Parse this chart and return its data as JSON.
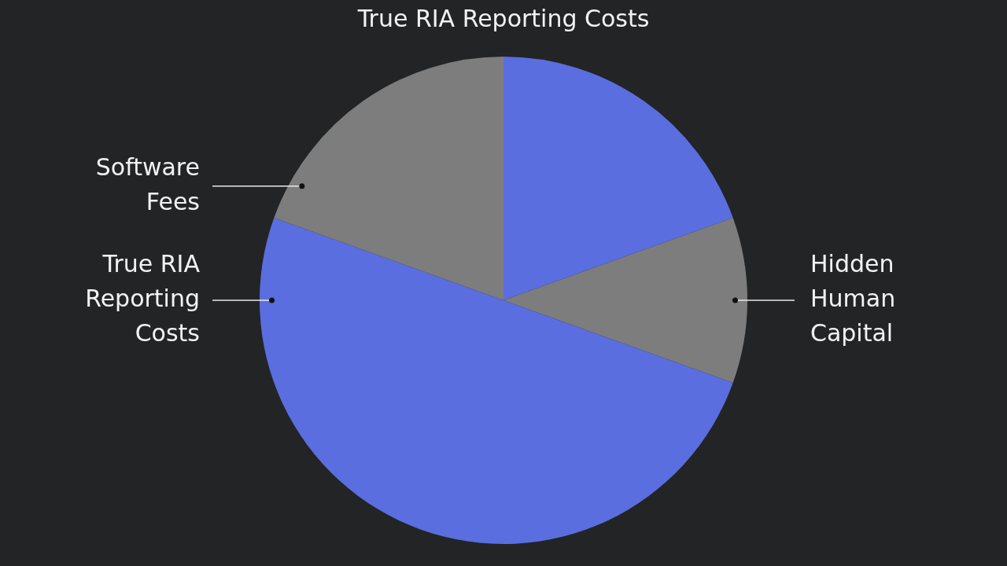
{
  "chart_data": {
    "type": "pie",
    "title": "True RIA Reporting Costs",
    "categories": [
      null,
      "Hidden Human Capital",
      "True RIA Reporting Costs",
      "Software Fees"
    ],
    "values": [
      19.5,
      11,
      50,
      19.5
    ],
    "colors": [
      "#5a6ee0",
      "#7d7d7d",
      "#5a6ee0",
      "#7d7d7d"
    ],
    "legend": false
  }
}
